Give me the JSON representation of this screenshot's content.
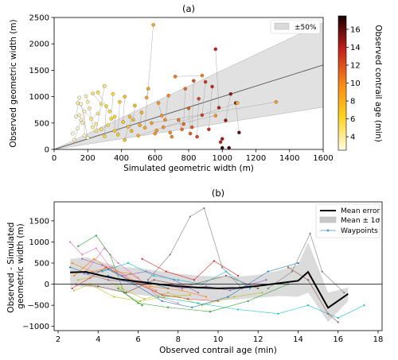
{
  "chart_data": [
    {
      "type": "scatter",
      "title": "(a)",
      "xlabel": "Simulated geometric width (m)",
      "ylabel": "Observed geometric width (m)",
      "xlim": [
        0,
        1600
      ],
      "ylim": [
        0,
        2500
      ],
      "xticks": [
        "0",
        "200",
        "400",
        "600",
        "800",
        "1000",
        "1200",
        "1400",
        "1600"
      ],
      "yticks": [
        "0",
        "500",
        "1000",
        "1500",
        "2000",
        "2500"
      ],
      "legend": {
        "placement": "top-right",
        "entries": [
          "±50%"
        ]
      },
      "colorbar": {
        "label": "Observed contrail age (min)",
        "range": [
          2.5,
          17.5
        ],
        "ticks": [
          "4",
          "6",
          "8",
          "10",
          "12",
          "14",
          "16"
        ]
      },
      "band_label": "±50%",
      "points": [
        [
          110,
          300,
          3
        ],
        [
          130,
          620,
          3
        ],
        [
          150,
          980,
          3
        ],
        [
          160,
          860,
          3
        ],
        [
          140,
          400,
          2.8
        ],
        [
          180,
          720,
          3.2
        ],
        [
          200,
          220,
          3
        ],
        [
          120,
          180,
          3.4
        ],
        [
          170,
          500,
          3.5
        ],
        [
          190,
          1010,
          3.8
        ],
        [
          210,
          780,
          3.9
        ],
        [
          150,
          650,
          3.6
        ],
        [
          230,
          420,
          4
        ],
        [
          140,
          880,
          4.2
        ],
        [
          220,
          580,
          4.5
        ],
        [
          250,
          350,
          4.8
        ],
        [
          180,
          260,
          3.1
        ],
        [
          260,
          680,
          4.6
        ],
        [
          160,
          560,
          3.3
        ],
        [
          230,
          1060,
          5
        ],
        [
          300,
          1200,
          4.8
        ],
        [
          280,
          380,
          5.2
        ],
        [
          320,
          460,
          5.5
        ],
        [
          310,
          820,
          5.8
        ],
        [
          350,
          1050,
          6
        ],
        [
          340,
          580,
          6.2
        ],
        [
          260,
          1080,
          5.5
        ],
        [
          360,
          350,
          6.5
        ],
        [
          390,
          900,
          6.7
        ],
        [
          410,
          520,
          7
        ],
        [
          420,
          1000,
          7.2
        ],
        [
          380,
          280,
          6.8
        ],
        [
          300,
          250,
          5.9
        ],
        [
          450,
          620,
          7.5
        ],
        [
          460,
          350,
          7.6
        ],
        [
          480,
          830,
          7.8
        ],
        [
          500,
          260,
          8
        ],
        [
          420,
          180,
          7.4
        ],
        [
          520,
          700,
          8.2
        ],
        [
          540,
          410,
          8.5
        ],
        [
          550,
          980,
          8.6
        ],
        [
          560,
          1150,
          8.7
        ],
        [
          580,
          500,
          9
        ],
        [
          590,
          2360,
          8.5
        ],
        [
          600,
          300,
          9.2
        ],
        [
          620,
          880,
          9.3
        ],
        [
          640,
          640,
          9.5
        ],
        [
          650,
          420,
          9.6
        ],
        [
          680,
          1020,
          10
        ],
        [
          700,
          240,
          10.2
        ],
        [
          720,
          1380,
          10.5
        ],
        [
          740,
          560,
          10.8
        ],
        [
          760,
          380,
          11
        ],
        [
          780,
          1150,
          11.2
        ],
        [
          800,
          780,
          11.5
        ],
        [
          820,
          420,
          11.8
        ],
        [
          830,
          1300,
          12
        ],
        [
          850,
          240,
          12.3
        ],
        [
          860,
          960,
          12.5
        ],
        [
          880,
          650,
          12.8
        ],
        [
          900,
          1280,
          13
        ],
        [
          920,
          380,
          13.2
        ],
        [
          940,
          1190,
          13.5
        ],
        [
          960,
          1900,
          13.8
        ],
        [
          980,
          790,
          14
        ],
        [
          1000,
          200,
          14.5
        ],
        [
          1020,
          550,
          14.8
        ],
        [
          1050,
          1050,
          15
        ],
        [
          1080,
          880,
          15.5
        ],
        [
          1100,
          320,
          16
        ],
        [
          1320,
          900,
          9
        ],
        [
          1090,
          880,
          8
        ],
        [
          960,
          640,
          9.5
        ],
        [
          880,
          1400,
          10.4
        ],
        [
          360,
          620,
          6.3
        ],
        [
          250,
          480,
          4.1
        ],
        [
          200,
          900,
          3.7
        ],
        [
          280,
          860,
          5.1
        ],
        [
          330,
          720,
          5.6
        ],
        [
          440,
          430,
          7.3
        ],
        [
          470,
          560,
          7.7
        ],
        [
          510,
          460,
          8.1
        ],
        [
          610,
          360,
          9.1
        ],
        [
          660,
          560,
          9.7
        ],
        [
          690,
          320,
          10.1
        ],
        [
          770,
          480,
          11.1
        ],
        [
          810,
          300,
          11.6
        ],
        [
          990,
          140,
          14.2
        ],
        [
          1040,
          30,
          16.5
        ],
        [
          1000,
          30,
          17
        ]
      ]
    },
    {
      "type": "line",
      "title": "(b)",
      "xlabel": "Observed contrail age (min)",
      "ylabel": "Observed - Simulated geometric width (m)",
      "xlim": [
        1.8,
        18.2
      ],
      "ylim": [
        -1100,
        1950
      ],
      "xticks": [
        "2",
        "4",
        "6",
        "8",
        "10",
        "12",
        "14",
        "16",
        "18"
      ],
      "yticks": [
        "−1000",
        "−500",
        "0",
        "500",
        "1000",
        "1500"
      ],
      "legend": {
        "placement": "top-right",
        "entries": [
          "Mean error",
          "Mean ± 1σ",
          "Waypoints"
        ]
      },
      "mean_error": {
        "x": [
          2.6,
          3.4,
          4.2,
          5.0,
          6.0,
          7.0,
          8.0,
          9.0,
          10.0,
          11.0,
          12.0,
          13.0,
          14.0,
          14.5,
          15.5,
          16.5
        ],
        "y": [
          280,
          290,
          200,
          120,
          60,
          0,
          -50,
          -80,
          -100,
          -90,
          -40,
          20,
          80,
          290,
          -560,
          -230
        ]
      },
      "band": {
        "x": [
          2.6,
          3.4,
          4.2,
          5.0,
          6.0,
          7.0,
          8.0,
          9.0,
          10.0,
          11.0,
          12.0,
          13.0,
          14.0,
          14.5,
          15.5,
          16.5
        ],
        "lower": [
          -50,
          -60,
          -100,
          -180,
          -250,
          -300,
          -320,
          -350,
          -380,
          -360,
          -320,
          -280,
          -300,
          -200,
          -900,
          -400
        ],
        "upper": [
          600,
          640,
          520,
          420,
          380,
          320,
          250,
          200,
          180,
          180,
          220,
          320,
          460,
          1000,
          -200,
          -80
        ]
      },
      "waypoint_traces": [
        {
          "color": "#1f77b4",
          "x": [
            2.6,
            3.5,
            4.5,
            5.5,
            6.5,
            7.5
          ],
          "y": [
            400,
            250,
            350,
            100,
            50,
            -100
          ]
        },
        {
          "color": "#ff7f0e",
          "x": [
            2.8,
            3.8,
            4.8,
            5.6,
            6.6,
            8.2,
            9.4
          ],
          "y": [
            200,
            600,
            300,
            250,
            -50,
            -150,
            -300
          ]
        },
        {
          "color": "#2ca02c",
          "x": [
            3.0,
            3.9,
            4.6,
            5.3,
            6.2
          ],
          "y": [
            900,
            1150,
            700,
            -200,
            -500
          ]
        },
        {
          "color": "#d62728",
          "x": [
            2.7,
            3.6,
            4.4,
            5.8,
            7.2,
            8.5,
            10.0
          ],
          "y": [
            -100,
            150,
            400,
            50,
            -250,
            -350,
            -400
          ]
        },
        {
          "color": "#9467bd",
          "x": [
            3.2,
            4.2,
            5.2,
            6.4,
            7.8,
            9.0
          ],
          "y": [
            600,
            450,
            200,
            300,
            100,
            -200
          ]
        },
        {
          "color": "#8c564b",
          "x": [
            2.9,
            4.0,
            5.4,
            6.8,
            8.4,
            10.4,
            12.0
          ],
          "y": [
            0,
            -50,
            -200,
            100,
            -50,
            200,
            -100
          ]
        },
        {
          "color": "#e377c2",
          "x": [
            3.4,
            4.3,
            5.0,
            6.0,
            7.0,
            8.0
          ],
          "y": [
            300,
            850,
            500,
            150,
            -300,
            -450
          ]
        },
        {
          "color": "#7f7f7f",
          "x": [
            6.5,
            7.6,
            8.6,
            9.3,
            10.2,
            11.2
          ],
          "y": [
            100,
            700,
            1600,
            1800,
            400,
            -100
          ]
        },
        {
          "color": "#bcbd22",
          "x": [
            3.0,
            4.1,
            5.2,
            6.3,
            7.5,
            9.2,
            10.8,
            12.2
          ],
          "y": [
            100,
            200,
            -100,
            -350,
            -200,
            -500,
            -300,
            -200
          ]
        },
        {
          "color": "#17becf",
          "x": [
            7.0,
            9.0,
            11.0,
            13.0,
            14.5,
            16.0,
            17.3
          ],
          "y": [
            -300,
            -450,
            -600,
            -700,
            -500,
            -800,
            -500
          ]
        },
        {
          "color": "#1f77b4",
          "x": [
            4.5,
            5.8,
            7.2,
            8.7,
            10.5,
            12.5,
            14.0
          ],
          "y": [
            200,
            0,
            -400,
            -550,
            -300,
            300,
            500
          ]
        },
        {
          "color": "#ff7f0e",
          "x": [
            2.7,
            3.7,
            4.7,
            5.9,
            6.9
          ],
          "y": [
            500,
            300,
            400,
            50,
            -150
          ]
        },
        {
          "color": "#2ca02c",
          "x": [
            5.0,
            6.0,
            7.5,
            9.6,
            11.5,
            13.5
          ],
          "y": [
            -100,
            -450,
            -550,
            -650,
            -400,
            0
          ]
        },
        {
          "color": "#d62728",
          "x": [
            6.2,
            7.4,
            8.8,
            9.8,
            11.0
          ],
          "y": [
            600,
            300,
            100,
            550,
            200
          ]
        },
        {
          "color": "#9467bd",
          "x": [
            3.3,
            4.5,
            5.7,
            7.0,
            8.2,
            9.4,
            10.6,
            12.4
          ],
          "y": [
            250,
            100,
            50,
            0,
            -100,
            -50,
            -150,
            100
          ]
        },
        {
          "color": "#8c564b",
          "x": [
            13.5,
            14.5,
            15.5,
            16.0
          ],
          "y": [
            400,
            100,
            -700,
            -900
          ]
        },
        {
          "color": "#e377c2",
          "x": [
            2.6,
            3.2,
            3.9,
            4.6,
            5.4
          ],
          "y": [
            1000,
            700,
            850,
            400,
            200
          ]
        },
        {
          "color": "#7f7f7f",
          "x": [
            12.5,
            13.7,
            14.6,
            15.2,
            16.3
          ],
          "y": [
            -100,
            300,
            1200,
            300,
            -200
          ]
        },
        {
          "color": "#bcbd22",
          "x": [
            2.8,
            3.6,
            4.8,
            6.1,
            7.3,
            8.6
          ],
          "y": [
            -150,
            0,
            -300,
            -400,
            -300,
            -250
          ]
        },
        {
          "color": "#17becf",
          "x": [
            4.2,
            5.5,
            6.8,
            8.0,
            9.2,
            10.4,
            11.6
          ],
          "y": [
            300,
            500,
            200,
            100,
            0,
            300,
            -100
          ]
        }
      ]
    }
  ]
}
